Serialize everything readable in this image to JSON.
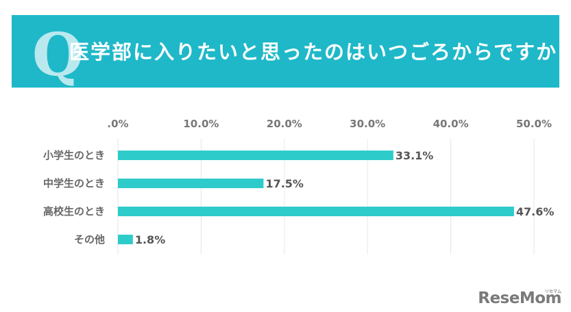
{
  "header": {
    "q_letter": "Q",
    "title": "医学部に入りたいと思ったのはいつごろからですか"
  },
  "chart_data": {
    "type": "bar",
    "orientation": "horizontal",
    "categories": [
      "小学生のとき",
      "中学生のとき",
      "高校生のとき",
      "その他"
    ],
    "values": [
      33.1,
      17.5,
      47.6,
      1.8
    ],
    "value_labels": [
      "33.1%",
      "17.5%",
      "47.6%",
      "1.8%"
    ],
    "xticks": [
      ".0%",
      "10.0%",
      "20.0%",
      "30.0%",
      "40.0%",
      "50.0%"
    ],
    "xlim": [
      0,
      50
    ],
    "axis_position": "top",
    "grid": true,
    "bar_color": "#2ecbcb"
  },
  "watermark": {
    "brand": "ReseMom",
    "kana": "リセマム"
  }
}
